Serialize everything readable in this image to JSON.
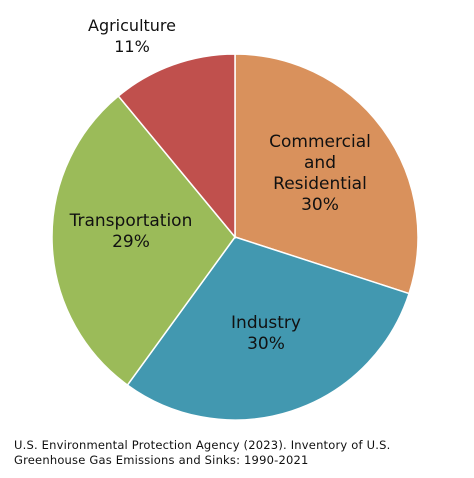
{
  "chart_data": {
    "type": "pie",
    "series": [
      {
        "name": "",
        "values": [
          {
            "category": "Commercial and Residential",
            "label_lines": [
              "Commercial",
              "and",
              "Residential"
            ],
            "value": 30,
            "value_label": "30%",
            "color": "#D9915C"
          },
          {
            "category": "Industry",
            "label_lines": [
              "Industry"
            ],
            "value": 30,
            "value_label": "30%",
            "color": "#4298B0"
          },
          {
            "category": "Transportation",
            "label_lines": [
              "Transportation"
            ],
            "value": 29,
            "value_label": "29%",
            "color": "#9BBB59"
          },
          {
            "category": "Agriculture",
            "label_lines": [
              "Agriculture"
            ],
            "value": 11,
            "value_label": "11%",
            "color": "#C0504D"
          }
        ]
      }
    ],
    "start_angle": "12 o'clock",
    "direction": "clockwise",
    "title": "",
    "legend": "none (labels on slices)"
  },
  "caption": {
    "line1": "U.S. Environmental Protection Agency (2023). Inventory of U.S.",
    "line2": "Greenhouse Gas Emissions and Sinks: 1990-2021"
  }
}
